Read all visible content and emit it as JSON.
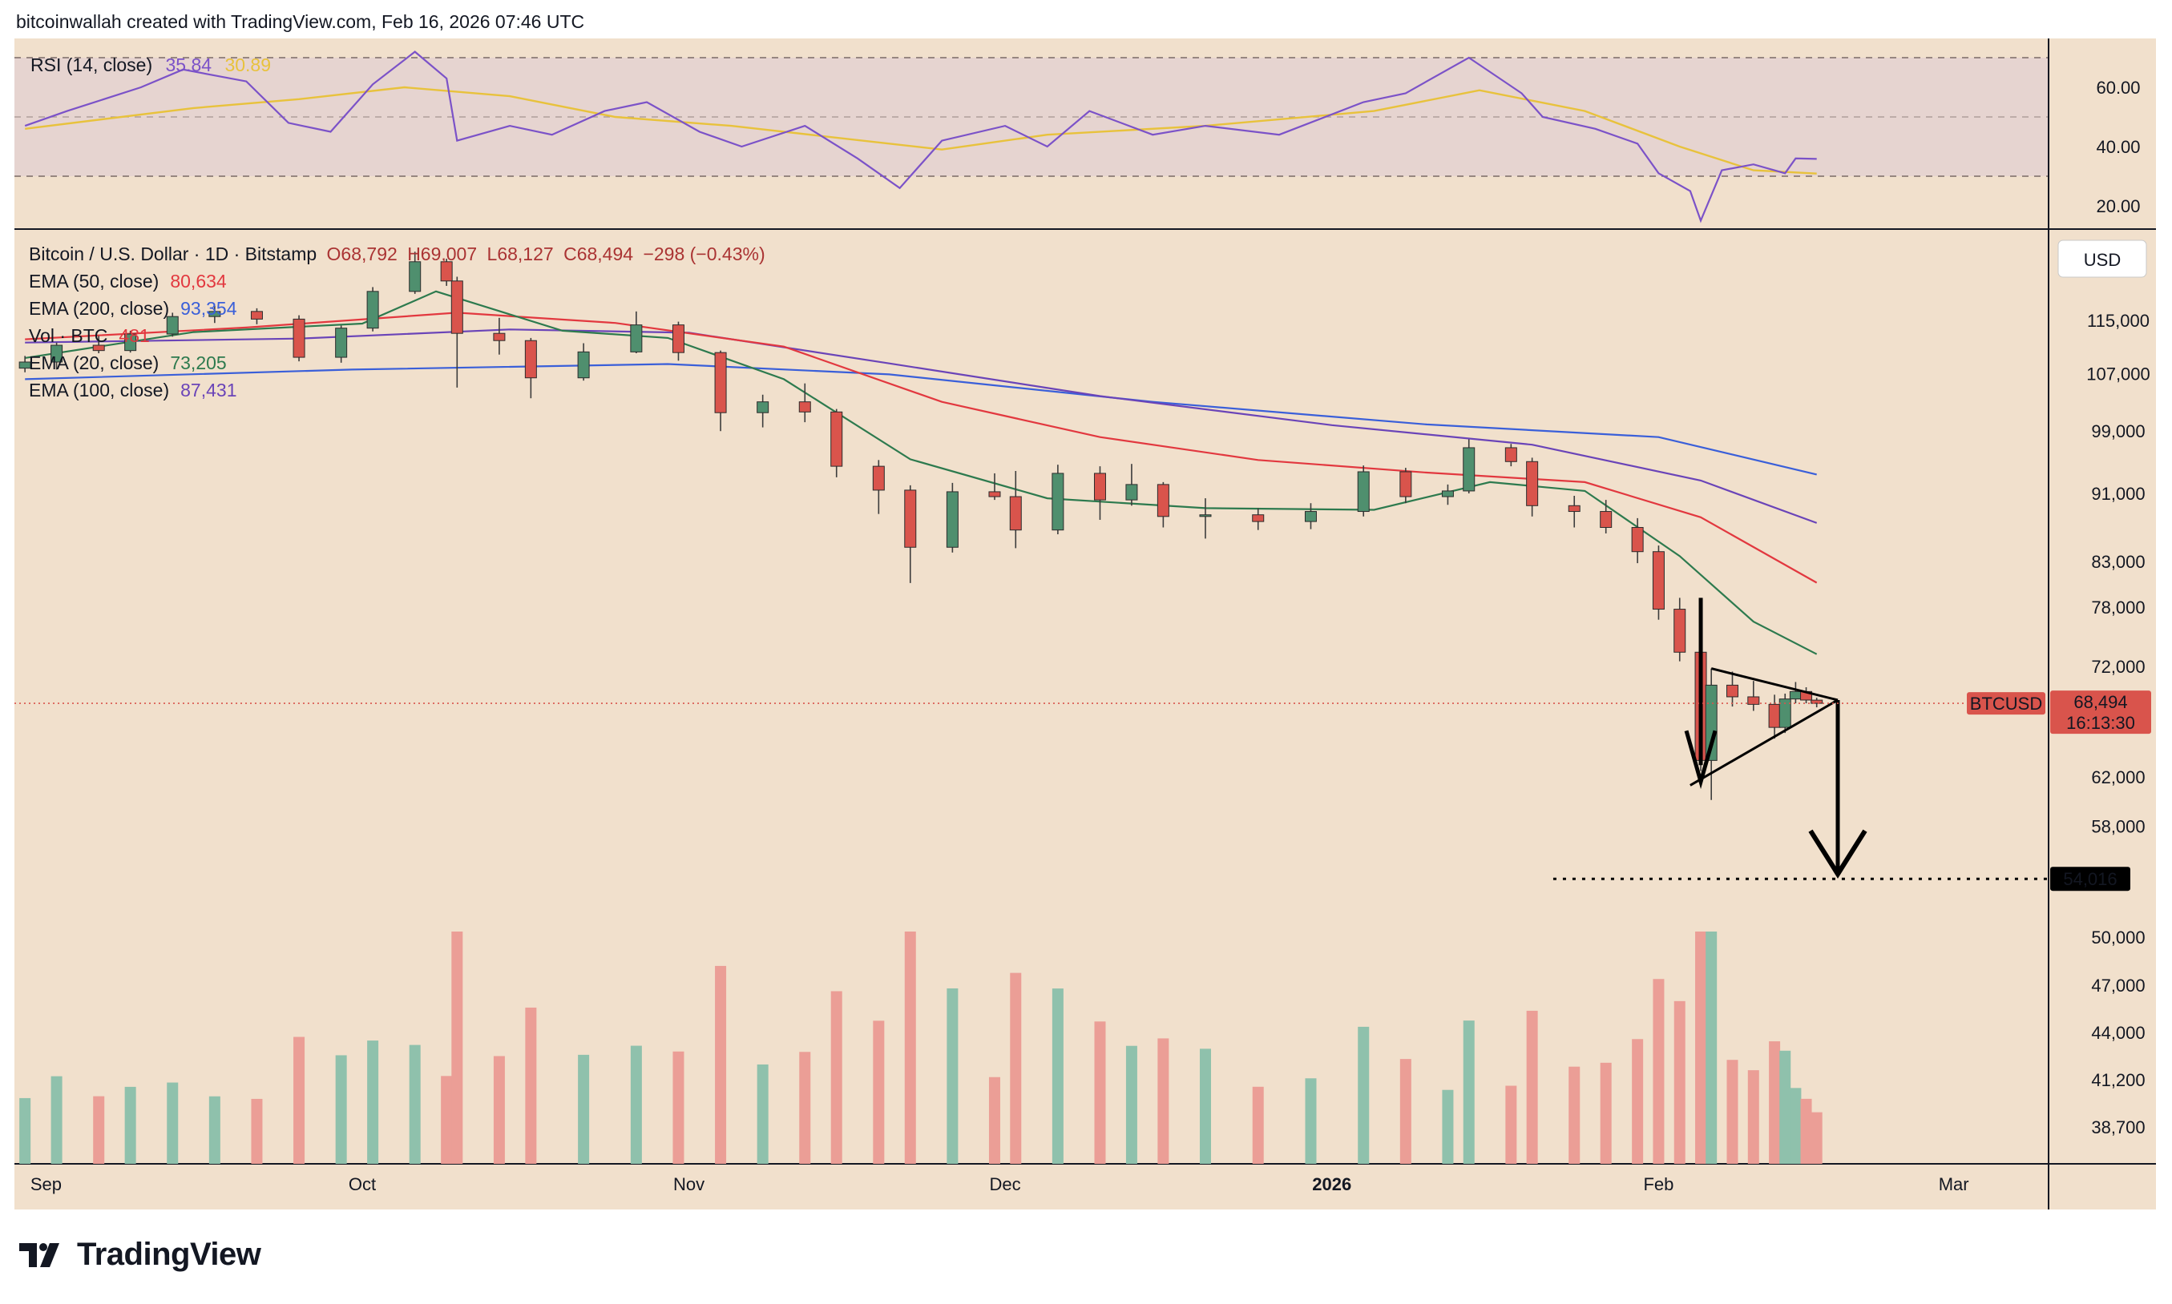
{
  "header": {
    "caption": "bitcoinwallah created with TradingView.com, Feb 16, 2026 07:46 UTC"
  },
  "brand": {
    "name": "TradingView"
  },
  "colors": {
    "background": "#f1e0cc",
    "rsi_band": "#e6d4d0",
    "up": "#4f8f6e",
    "down": "#d9544c",
    "vol_up": "#8fc1ac",
    "vol_down": "#eb9e96",
    "ema20": "#2d7a4e",
    "ema50": "#e2383f",
    "ema100": "#6a44b8",
    "ema200": "#3a5fd9",
    "rsi": "#7b52c8",
    "rsi_ma": "#e8c23c"
  },
  "rsi_panel": {
    "title": "RSI (14, close)",
    "value": "35.84",
    "ma_value": "30.89",
    "axis_ticks": [
      "60.00",
      "40.00",
      "20.00"
    ]
  },
  "main_legend": {
    "symbol": "Bitcoin / U.S. Dollar · 1D · Bitstamp",
    "open": "O68,792",
    "high": "H69,007",
    "low": "L68,127",
    "close": "C68,494",
    "change": "−298 (−0.43%)",
    "lines": [
      {
        "label": "EMA (50, close)",
        "value": "80,634",
        "color": "#e2383f"
      },
      {
        "label": "EMA (200, close)",
        "value": "93,354",
        "color": "#3a5fd9"
      },
      {
        "label": "Vol · BTC",
        "value": "481",
        "color": "#e2383f"
      },
      {
        "label": "EMA (20, close)",
        "value": "73,205",
        "color": "#2d7a4e"
      },
      {
        "label": "EMA (100, close)",
        "value": "87,431",
        "color": "#6a44b8"
      }
    ]
  },
  "price_axis": {
    "currency": "USD",
    "ticks": [
      "115,000",
      "107,000",
      "99,000",
      "91,000",
      "83,000",
      "78,000",
      "72,000",
      "62,000",
      "58,000",
      "50,000",
      "47,000",
      "44,000",
      "41,200",
      "38,700"
    ],
    "last_symbol": "BTCUSD",
    "last_price": "68,494",
    "countdown": "16:13:30",
    "target_label": "54,016"
  },
  "time_axis": {
    "labels": [
      "Sep",
      "Oct",
      "Nov",
      "Dec",
      "2026",
      "Feb",
      "Mar"
    ]
  },
  "chart_data": {
    "type": "candlestick",
    "title": "Bitcoin / U.S. Dollar · 1D · Bitstamp",
    "scale": "log",
    "ylim": [
      36000,
      124000
    ],
    "x_start": "2025-08-29",
    "x_end": "2026-03-10",
    "ohlc": [
      [
        "2025-08-30",
        107800,
        109600,
        107200,
        108700
      ],
      [
        "2025-09-02",
        108700,
        111600,
        107600,
        111200
      ],
      [
        "2025-09-06",
        111200,
        112600,
        110000,
        110400
      ],
      [
        "2025-09-09",
        110400,
        113400,
        110100,
        112900
      ],
      [
        "2025-09-13",
        112900,
        116200,
        112500,
        115600
      ],
      [
        "2025-09-17",
        115600,
        117300,
        114600,
        116400
      ],
      [
        "2025-09-21",
        116400,
        116900,
        114400,
        115200
      ],
      [
        "2025-09-25",
        115200,
        115800,
        108800,
        109400
      ],
      [
        "2025-09-29",
        109400,
        114200,
        108600,
        113800
      ],
      [
        "2025-10-02",
        113800,
        120300,
        113300,
        119600
      ],
      [
        "2025-10-06",
        119600,
        126200,
        119200,
        124500
      ],
      [
        "2025-10-09",
        124500,
        125000,
        120500,
        121300
      ],
      [
        "2025-10-10",
        121300,
        122000,
        105000,
        113000
      ],
      [
        "2025-10-14",
        113000,
        115400,
        109800,
        111900
      ],
      [
        "2025-10-17",
        111900,
        112300,
        103500,
        106400
      ],
      [
        "2025-10-22",
        106400,
        111500,
        106000,
        110200
      ],
      [
        "2025-10-27",
        110200,
        116400,
        110000,
        114300
      ],
      [
        "2025-10-31",
        114300,
        114800,
        108900,
        110100
      ],
      [
        "2025-11-04",
        110100,
        110400,
        99000,
        101500
      ],
      [
        "2025-11-08",
        101500,
        104000,
        99500,
        103000
      ],
      [
        "2025-11-12",
        103000,
        105600,
        100200,
        101600
      ],
      [
        "2025-11-15",
        101600,
        102000,
        93000,
        94400
      ],
      [
        "2025-11-19",
        94400,
        95200,
        88500,
        91400
      ],
      [
        "2025-11-22",
        91400,
        92000,
        80600,
        84600
      ],
      [
        "2025-11-26",
        84600,
        92300,
        84000,
        91200
      ],
      [
        "2025-11-30",
        91200,
        93500,
        90200,
        90600
      ],
      [
        "2025-12-02",
        90600,
        93800,
        84500,
        86600
      ],
      [
        "2025-12-06",
        86600,
        94600,
        86100,
        93500
      ],
      [
        "2025-12-10",
        93500,
        94400,
        87800,
        90200
      ],
      [
        "2025-12-13",
        90200,
        94700,
        89500,
        92100
      ],
      [
        "2025-12-16",
        92100,
        92400,
        86900,
        88200
      ],
      [
        "2025-12-20",
        88200,
        90400,
        85600,
        88400
      ],
      [
        "2025-12-25",
        88400,
        89200,
        86600,
        87600
      ],
      [
        "2025-12-30",
        87600,
        89800,
        86700,
        88800
      ],
      [
        "2026-01-04",
        88800,
        94500,
        88200,
        93700
      ],
      [
        "2026-01-08",
        93700,
        94200,
        89800,
        90600
      ],
      [
        "2026-01-12",
        90600,
        92100,
        89600,
        91300
      ],
      [
        "2026-01-14",
        91300,
        97900,
        91000,
        96800
      ],
      [
        "2026-01-18",
        96800,
        97300,
        94400,
        95000
      ],
      [
        "2026-01-20",
        95000,
        95500,
        88200,
        89500
      ],
      [
        "2026-01-24",
        89500,
        90700,
        86900,
        88800
      ],
      [
        "2026-01-27",
        88800,
        90200,
        86200,
        86900
      ],
      [
        "2026-01-30",
        86900,
        88000,
        82800,
        84100
      ],
      [
        "2026-02-01",
        84100,
        84800,
        76700,
        77800
      ],
      [
        "2026-02-03",
        77800,
        79000,
        72500,
        73400
      ],
      [
        "2026-02-05",
        73400,
        74200,
        62500,
        63400
      ],
      [
        "2026-02-06",
        63400,
        71800,
        60100,
        70200
      ],
      [
        "2026-02-08",
        70200,
        71500,
        68200,
        69100
      ],
      [
        "2026-02-10",
        69100,
        70600,
        67800,
        68400
      ],
      [
        "2026-02-12",
        68400,
        69300,
        65300,
        66300
      ],
      [
        "2026-02-13",
        66300,
        69400,
        65800,
        68900
      ],
      [
        "2026-02-14",
        68900,
        70500,
        68500,
        69600
      ],
      [
        "2026-02-15",
        69600,
        70000,
        68500,
        68800
      ],
      [
        "2026-02-16",
        68792,
        69007,
        68127,
        68494
      ]
    ],
    "ema20": [
      [
        "2025-08-30",
        109300
      ],
      [
        "2025-09-15",
        113200
      ],
      [
        "2025-10-01",
        114500
      ],
      [
        "2025-10-08",
        119600
      ],
      [
        "2025-10-20",
        113400
      ],
      [
        "2025-10-30",
        112300
      ],
      [
        "2025-11-10",
        106200
      ],
      [
        "2025-11-22",
        95300
      ],
      [
        "2025-12-05",
        90400
      ],
      [
        "2025-12-20",
        89200
      ],
      [
        "2026-01-05",
        89000
      ],
      [
        "2026-01-16",
        92400
      ],
      [
        "2026-01-25",
        91300
      ],
      [
        "2026-02-03",
        83600
      ],
      [
        "2026-02-10",
        76500
      ],
      [
        "2026-02-16",
        73205
      ]
    ],
    "ema50": [
      [
        "2025-08-30",
        112100
      ],
      [
        "2025-09-20",
        113900
      ],
      [
        "2025-10-10",
        116200
      ],
      [
        "2025-10-25",
        114600
      ],
      [
        "2025-11-10",
        111000
      ],
      [
        "2025-11-25",
        103000
      ],
      [
        "2025-12-10",
        98200
      ],
      [
        "2025-12-25",
        95200
      ],
      [
        "2026-01-10",
        93600
      ],
      [
        "2026-01-25",
        92400
      ],
      [
        "2026-02-05",
        88100
      ],
      [
        "2026-02-16",
        80634
      ]
    ],
    "ema100": [
      [
        "2025-08-30",
        111600
      ],
      [
        "2025-09-25",
        112200
      ],
      [
        "2025-10-15",
        113600
      ],
      [
        "2025-11-01",
        113100
      ],
      [
        "2025-11-20",
        108500
      ],
      [
        "2025-12-10",
        103800
      ],
      [
        "2026-01-01",
        99800
      ],
      [
        "2026-01-20",
        97200
      ],
      [
        "2026-02-05",
        92600
      ],
      [
        "2026-02-16",
        87431
      ]
    ],
    "ema200": [
      [
        "2025-08-30",
        106200
      ],
      [
        "2025-09-30",
        107600
      ],
      [
        "2025-10-30",
        108400
      ],
      [
        "2025-11-20",
        106900
      ],
      [
        "2025-12-15",
        103000
      ],
      [
        "2026-01-10",
        99900
      ],
      [
        "2026-02-01",
        98200
      ],
      [
        "2026-02-16",
        93354
      ]
    ],
    "rsi": [
      [
        "2025-08-30",
        47
      ],
      [
        "2025-09-03",
        52
      ],
      [
        "2025-09-10",
        60
      ],
      [
        "2025-09-14",
        66
      ],
      [
        "2025-09-20",
        62
      ],
      [
        "2025-09-24",
        48
      ],
      [
        "2025-09-28",
        45
      ],
      [
        "2025-10-02",
        61
      ],
      [
        "2025-10-06",
        72
      ],
      [
        "2025-10-09",
        63
      ],
      [
        "2025-10-10",
        42
      ],
      [
        "2025-10-15",
        47
      ],
      [
        "2025-10-19",
        44
      ],
      [
        "2025-10-24",
        52
      ],
      [
        "2025-10-28",
        55
      ],
      [
        "2025-11-02",
        45
      ],
      [
        "2025-11-06",
        40
      ],
      [
        "2025-11-12",
        47
      ],
      [
        "2025-11-17",
        36
      ],
      [
        "2025-11-21",
        26
      ],
      [
        "2025-11-25",
        42
      ],
      [
        "2025-12-01",
        47
      ],
      [
        "2025-12-05",
        40
      ],
      [
        "2025-12-09",
        52
      ],
      [
        "2025-12-15",
        44
      ],
      [
        "2025-12-20",
        47
      ],
      [
        "2025-12-27",
        44
      ],
      [
        "2026-01-04",
        55
      ],
      [
        "2026-01-08",
        58
      ],
      [
        "2026-01-14",
        70
      ],
      [
        "2026-01-19",
        58
      ],
      [
        "2026-01-21",
        50
      ],
      [
        "2026-01-26",
        46
      ],
      [
        "2026-01-30",
        41
      ],
      [
        "2026-02-01",
        31
      ],
      [
        "2026-02-04",
        25
      ],
      [
        "2026-02-05",
        15
      ],
      [
        "2026-02-07",
        32
      ],
      [
        "2026-02-10",
        34
      ],
      [
        "2026-02-13",
        31
      ],
      [
        "2026-02-14",
        36
      ],
      [
        "2026-02-16",
        35.84
      ]
    ],
    "rsi_ma": [
      [
        "2025-08-30",
        46
      ],
      [
        "2025-09-15",
        53
      ],
      [
        "2025-09-25",
        56
      ],
      [
        "2025-10-05",
        60
      ],
      [
        "2025-10-15",
        57
      ],
      [
        "2025-10-25",
        50
      ],
      [
        "2025-11-05",
        47
      ],
      [
        "2025-11-15",
        43
      ],
      [
        "2025-11-25",
        39
      ],
      [
        "2025-12-05",
        44
      ],
      [
        "2025-12-20",
        47
      ],
      [
        "2026-01-05",
        52
      ],
      [
        "2026-01-15",
        59
      ],
      [
        "2026-01-25",
        52
      ],
      [
        "2026-02-03",
        40
      ],
      [
        "2026-02-10",
        32
      ],
      [
        "2026-02-16",
        30.89
      ]
    ],
    "volume_bars": "per-candle volume shown in bottom pane"
  },
  "annotation": {
    "pattern": "bear pennant",
    "target": "54,016"
  }
}
